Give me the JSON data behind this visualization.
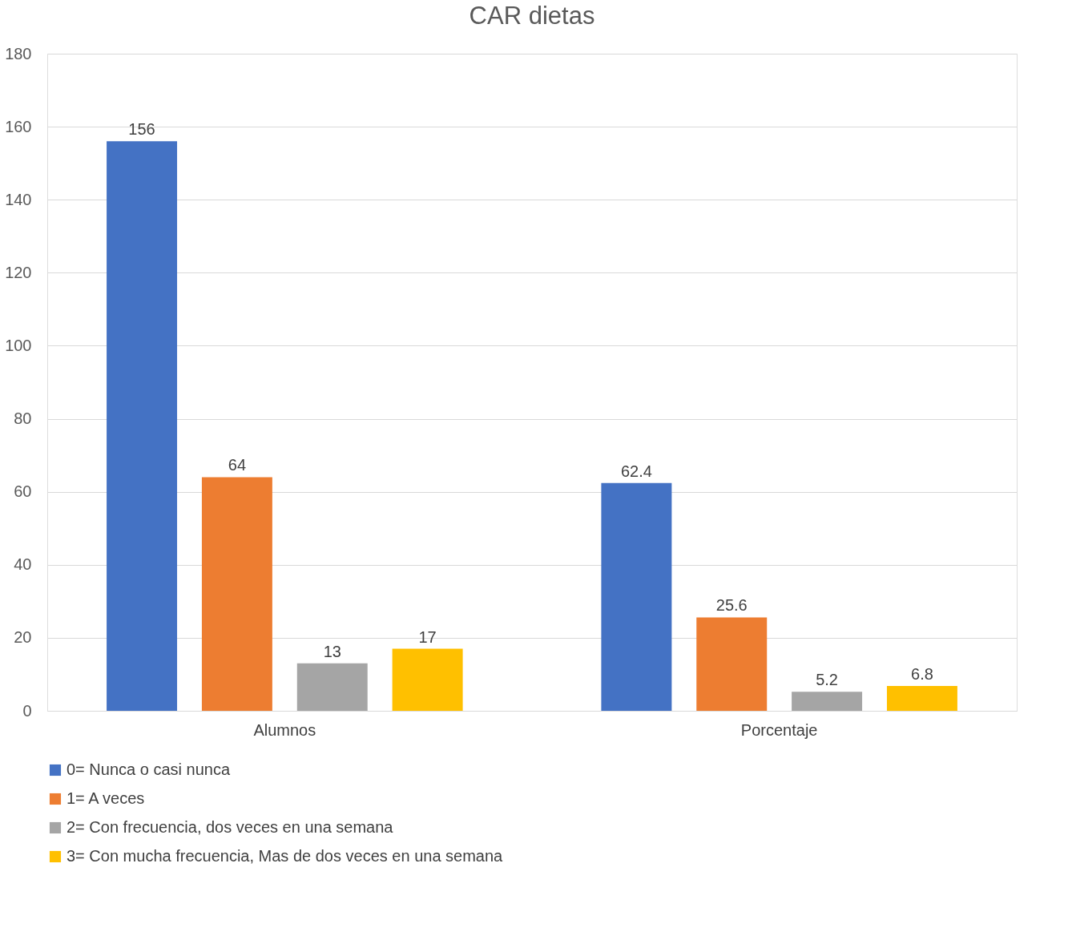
{
  "chart_data": {
    "type": "bar",
    "title": "CAR dietas",
    "categories": [
      "Alumnos",
      "Porcentaje"
    ],
    "series": [
      {
        "name": "0= Nunca o casi nunca",
        "color": "#4472c4",
        "values": [
          156,
          62.4
        ]
      },
      {
        "name": "1= A veces",
        "color": "#ed7d31",
        "values": [
          64,
          25.6
        ]
      },
      {
        "name": "2= Con frecuencia, dos veces en una semana",
        "color": "#a5a5a5",
        "values": [
          13,
          5.2
        ]
      },
      {
        "name": "3= Con mucha frecuencia, Mas de dos veces en una semana",
        "color": "#ffc000",
        "values": [
          17,
          6.8
        ]
      }
    ],
    "ylim": [
      0,
      180
    ],
    "yticks": [
      0,
      20,
      40,
      60,
      80,
      100,
      120,
      140,
      160,
      180
    ],
    "grid": "y",
    "legend": "bottom",
    "data_labels": true
  }
}
